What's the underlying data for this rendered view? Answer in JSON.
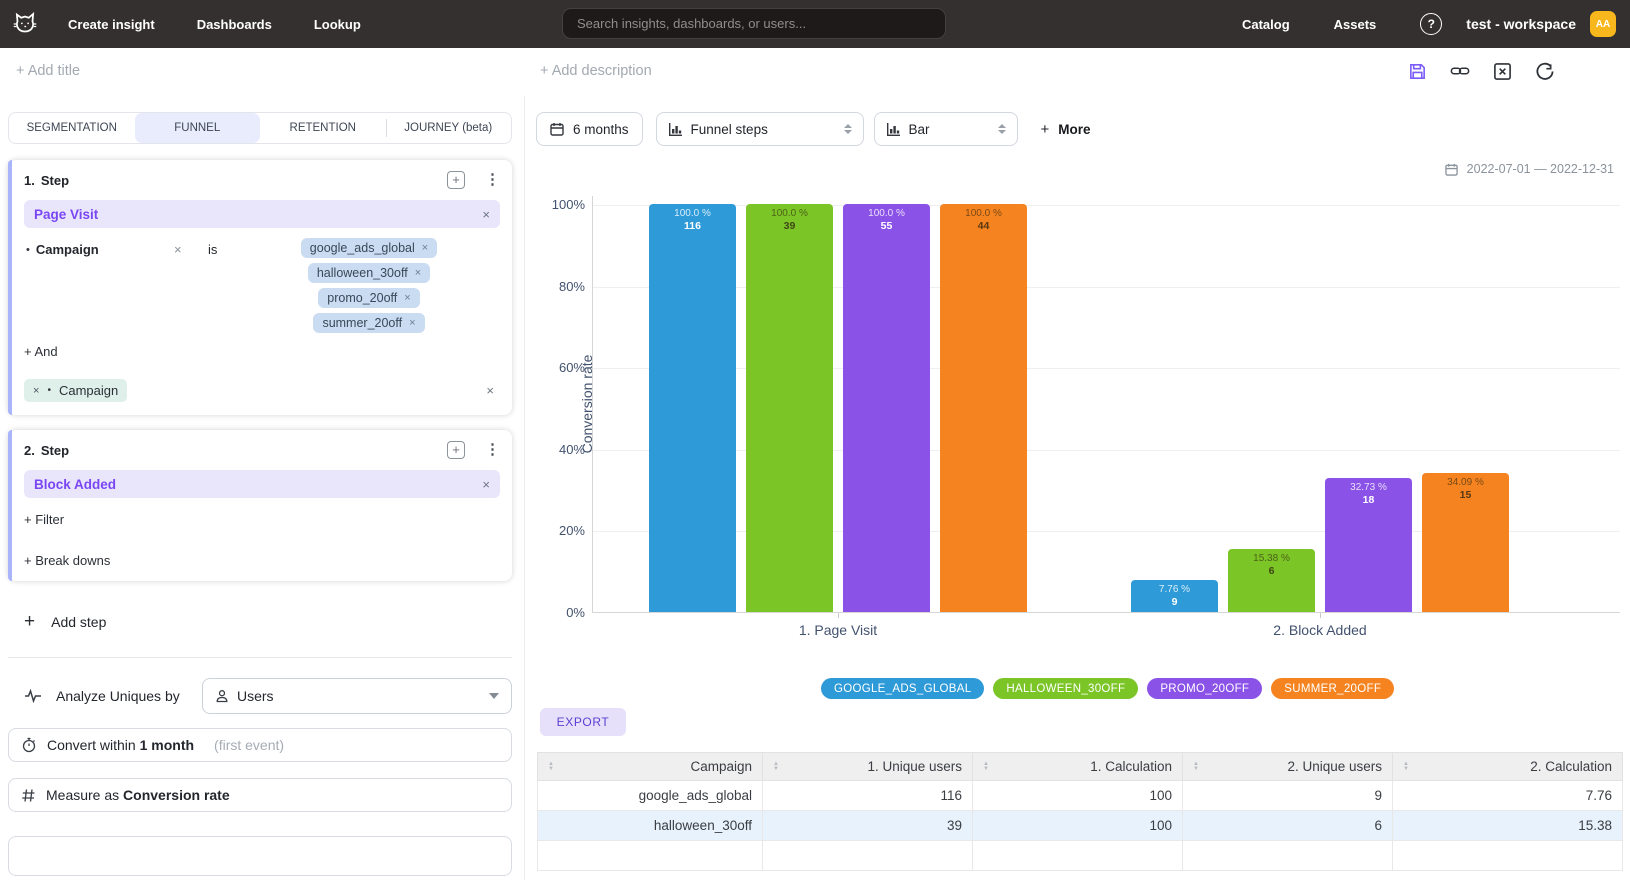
{
  "icons": {
    "plus": "+",
    "kebab": "⋮",
    "close": "×",
    "bullet": "•",
    "help": "?",
    "sort_up": "▲",
    "sort_down": "▼"
  },
  "topnav": {
    "items": [
      "Create insight",
      "Dashboards",
      "Lookup"
    ],
    "search_placeholder": "Search insights, dashboards, or users...",
    "right_items": [
      "Catalog",
      "Assets"
    ],
    "workspace": "test - workspace",
    "avatar_initials": "AA"
  },
  "titlebar": {
    "add_title": "+ Add title",
    "add_description": "+ Add description"
  },
  "builder": {
    "tabs": [
      {
        "label": "SEGMENTATION",
        "active": false
      },
      {
        "label": "FUNNEL",
        "active": true
      },
      {
        "label": "RETENTION",
        "active": false
      },
      {
        "label": "JOURNEY (beta)",
        "active": false
      }
    ],
    "step1": {
      "number": "1.",
      "title": "Step",
      "event": "Page Visit",
      "filter": {
        "property": "Campaign",
        "operator": "is",
        "values": [
          "google_ads_global",
          "halloween_30off",
          "promo_20off",
          "summer_20off"
        ]
      },
      "and_label": "+ And",
      "breakdown": "Campaign"
    },
    "step2": {
      "number": "2.",
      "title": "Step",
      "event": "Block Added",
      "filter_label": "+ Filter",
      "breakdowns_label": "+ Break downs"
    },
    "add_step_label": "Add step",
    "analyze_label": "Analyze Uniques by",
    "analyze_value": "Users",
    "convert_prefix": "Convert within",
    "convert_value": "1 month",
    "convert_suffix": "(first event)",
    "measure_prefix": "Measure as",
    "measure_value": "Conversion rate"
  },
  "toolbar": {
    "date_range_button": "6 months",
    "view_select": "Funnel steps",
    "chart_type_select": "Bar",
    "more_label": "More",
    "date_range_text": "2022-07-01 — 2022-12-31",
    "export_label": "EXPORT"
  },
  "chart_data": {
    "type": "bar",
    "title": "",
    "ylabel": "Conversion rate",
    "ylim": [
      0,
      100
    ],
    "yticks_pct": [
      0,
      20,
      40,
      60,
      80,
      100
    ],
    "ytick_labels": [
      "0%",
      "20%",
      "40%",
      "60%",
      "80%",
      "100%"
    ],
    "grid": true,
    "legend_position": "bottom",
    "categories": [
      "1. Page Visit",
      "2. Block Added"
    ],
    "series": [
      {
        "name": "google_ads_global",
        "color": "#2e9bd8",
        "text_style": "light",
        "pct": [
          100.0,
          7.76
        ],
        "pct_labels": [
          "100.0 %",
          "7.76 %"
        ],
        "counts": [
          116,
          9
        ]
      },
      {
        "name": "halloween_30off",
        "color": "#7cc527",
        "text_style": "dark",
        "pct": [
          100.0,
          15.38
        ],
        "pct_labels": [
          "100.0 %",
          "15.38 %"
        ],
        "counts": [
          39,
          6
        ]
      },
      {
        "name": "promo_20off",
        "color": "#8b52e8",
        "text_style": "light",
        "pct": [
          100.0,
          32.73
        ],
        "pct_labels": [
          "100.0 %",
          "32.73 %"
        ],
        "counts": [
          55,
          18
        ]
      },
      {
        "name": "summer_20off",
        "color": "#f58420",
        "text_style": "dark",
        "pct": [
          100.0,
          34.09
        ],
        "pct_labels": [
          "100.0 %",
          "34.09 %"
        ],
        "counts": [
          44,
          15
        ]
      }
    ],
    "legend": [
      {
        "label": "GOOGLE_ADS_GLOBAL",
        "color": "#2e9bd8"
      },
      {
        "label": "HALLOWEEN_30OFF",
        "color": "#7cc527"
      },
      {
        "label": "PROMO_20OFF",
        "color": "#8b52e8"
      },
      {
        "label": "SUMMER_20OFF",
        "color": "#f58420"
      }
    ]
  },
  "table": {
    "columns": [
      "Campaign",
      "1. Unique users",
      "1. Calculation",
      "2. Unique users",
      "2. Calculation"
    ],
    "rows": [
      {
        "cells": [
          "google_ads_global",
          "116",
          "100",
          "9",
          "7.76"
        ],
        "highlight": false
      },
      {
        "cells": [
          "halloween_30off",
          "39",
          "100",
          "6",
          "15.38"
        ],
        "highlight": true
      },
      {
        "cells": [
          "",
          "",
          "",
          "",
          ""
        ],
        "highlight": false
      }
    ]
  }
}
